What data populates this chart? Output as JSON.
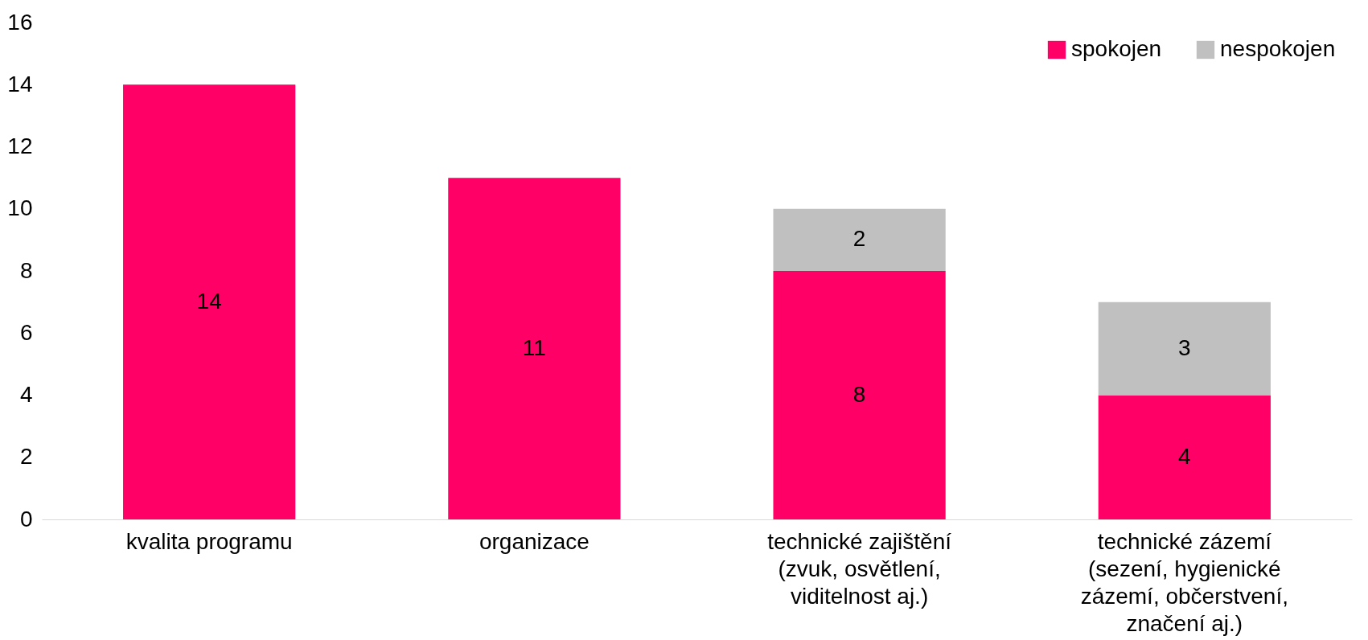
{
  "chart_data": {
    "type": "bar",
    "stacked": true,
    "categories": [
      "kvalita programu",
      "organizace",
      "technické zajištění (zvuk, osvětlení, viditelnost aj.)",
      "technické zázemí (sezení, hygienické zázemí, občerstvení, značení aj.)"
    ],
    "series": [
      {
        "name": "spokojen",
        "color": "#fe0066",
        "values": [
          14,
          11,
          8,
          4
        ]
      },
      {
        "name": "nespokojen",
        "color": "#c0c0c0",
        "values": [
          null,
          null,
          2,
          3
        ]
      }
    ],
    "ylim": [
      0,
      16
    ],
    "yticks": [
      0,
      2,
      4,
      6,
      8,
      10,
      12,
      14,
      16
    ],
    "grid": false,
    "legend": "top right",
    "data_labels": true
  }
}
